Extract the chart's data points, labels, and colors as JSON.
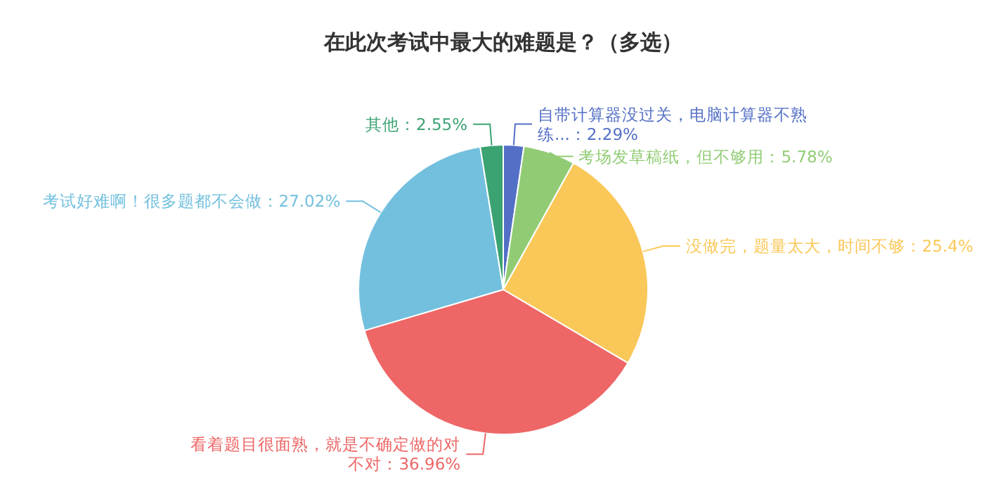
{
  "chart_data": {
    "type": "pie",
    "title": "在此次考试中最大的难题是？（多选）",
    "categories": [
      "自带计算器没过关，电脑计算器不熟练...",
      "考场发草稿纸，但不够用",
      "没做完，题量太大，时间不够",
      "看着题目很面熟，就是不确定做的对不对",
      "考试好难啊！很多题都不会做",
      "其他"
    ],
    "values": [
      2.29,
      5.78,
      25.4,
      36.96,
      27.02,
      2.55
    ],
    "value_labels": [
      "2.29%",
      "5.78%",
      "25.4%",
      "36.96%",
      "27.02%",
      "2.55%"
    ],
    "colors": [
      "#5470c6",
      "#91cc75",
      "#fac858",
      "#ee6666",
      "#73c0de",
      "#3ba272"
    ]
  }
}
